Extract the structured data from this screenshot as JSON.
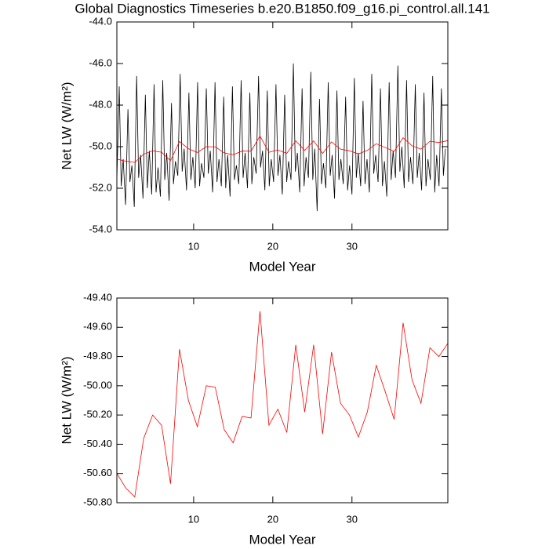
{
  "chart_data": [
    {
      "type": "line",
      "title": "Global Diagnostics Timeseries b.e20.B1850.f09_g16.pi_control.all.141",
      "x_label": "Model Year",
      "y_label": "Net LW (W/m²)",
      "xlim": [
        0.3,
        42.11
      ],
      "xticks": [
        10,
        20,
        30
      ],
      "ylim": [
        -54,
        -44
      ],
      "yticks": [
        {
          "value": -54,
          "label": "-54.0"
        },
        {
          "value": -52,
          "label": "-52.0"
        },
        {
          "value": -50,
          "label": "-50.0"
        },
        {
          "value": -48,
          "label": "-48.0"
        },
        {
          "value": -46,
          "label": "-46.0"
        },
        {
          "value": -44,
          "label": "-44.0"
        }
      ],
      "series": [
        {
          "color": "#000000",
          "x": [
            0.3,
            0.6,
            0.85,
            1.1,
            1.4,
            1.7,
            1.95,
            2.2,
            2.5,
            2.8,
            3.05,
            3.3,
            3.6,
            3.9,
            4.15,
            4.4,
            4.7,
            5.0,
            5.25,
            5.5,
            5.8,
            6.1,
            6.35,
            6.6,
            6.9,
            7.2,
            7.45,
            7.7,
            8.0,
            8.3,
            8.55,
            8.8,
            9.1,
            9.4,
            9.65,
            9.9,
            10.2,
            10.5,
            10.75,
            11.0,
            11.3,
            11.6,
            11.85,
            12.1,
            12.4,
            12.7,
            12.95,
            13.2,
            13.5,
            13.8,
            14.05,
            14.3,
            14.6,
            14.9,
            15.15,
            15.4,
            15.7,
            16.0,
            16.25,
            16.5,
            16.8,
            17.1,
            17.35,
            17.6,
            17.9,
            18.2,
            18.45,
            18.7,
            19.0,
            19.3,
            19.55,
            19.8,
            20.1,
            20.4,
            20.65,
            20.9,
            21.2,
            21.5,
            21.75,
            22.0,
            22.3,
            22.6,
            22.85,
            23.1,
            23.4,
            23.7,
            23.95,
            24.2,
            24.5,
            24.8,
            25.05,
            25.3,
            25.6,
            25.9,
            26.15,
            26.4,
            26.7,
            27.0,
            27.25,
            27.5,
            27.8,
            28.1,
            28.35,
            28.6,
            28.9,
            29.2,
            29.45,
            29.7,
            30.0,
            30.3,
            30.55,
            30.8,
            31.1,
            31.4,
            31.65,
            31.9,
            32.2,
            32.5,
            32.75,
            33.0,
            33.3,
            33.6,
            33.85,
            34.1,
            34.4,
            34.7,
            34.95,
            35.2,
            35.5,
            35.8,
            36.05,
            36.3,
            36.6,
            36.9,
            37.15,
            37.4,
            37.7,
            38.0,
            38.25,
            38.5,
            38.8,
            39.1,
            39.35,
            39.6,
            39.9,
            40.2,
            40.45,
            40.7,
            41.0,
            41.3,
            41.55,
            41.8
          ],
          "values": [
            -51.6,
            -47.1,
            -51.9,
            -50.6,
            -52.8,
            -48.2,
            -51.7,
            -50.9,
            -52.9,
            -46.6,
            -51.5,
            -50.4,
            -52.5,
            -47.5,
            -52.0,
            -50.2,
            -52.3,
            -47.0,
            -52.2,
            -51.0,
            -52.4,
            -46.8,
            -51.6,
            -50.3,
            -52.6,
            -47.9,
            -51.8,
            -50.7,
            -51.4,
            -46.5,
            -51.2,
            -50.1,
            -52.1,
            -47.4,
            -51.6,
            -50.5,
            -52.0,
            -46.9,
            -51.9,
            -50.8,
            -51.5,
            -47.2,
            -51.3,
            -50.2,
            -52.2,
            -46.9,
            -51.7,
            -50.6,
            -51.9,
            -47.6,
            -52.0,
            -50.4,
            -52.4,
            -47.1,
            -51.6,
            -50.9,
            -51.8,
            -46.8,
            -51.5,
            -50.3,
            -52.0,
            -47.4,
            -51.8,
            -50.5,
            -51.3,
            -46.6,
            -51.0,
            -50.2,
            -52.1,
            -47.3,
            -51.9,
            -50.6,
            -51.7,
            -47.0,
            -51.4,
            -50.4,
            -52.3,
            -47.5,
            -51.7,
            -50.7,
            -51.6,
            -46.0,
            -51.2,
            -50.3,
            -52.2,
            -47.2,
            -51.9,
            -50.5,
            -51.5,
            -46.4,
            -51.6,
            -50.1,
            -53.1,
            -47.7,
            -51.8,
            -50.8,
            -52.0,
            -46.9,
            -51.4,
            -50.4,
            -52.5,
            -47.3,
            -51.6,
            -50.6,
            -51.8,
            -47.6,
            -52.1,
            -50.9,
            -52.3,
            -46.7,
            -51.5,
            -50.3,
            -51.9,
            -47.8,
            -51.8,
            -50.6,
            -52.2,
            -46.5,
            -51.3,
            -50.4,
            -51.7,
            -47.2,
            -51.9,
            -50.7,
            -52.4,
            -46.9,
            -51.6,
            -50.2,
            -51.5,
            -46.1,
            -51.2,
            -50.0,
            -52.0,
            -46.8,
            -51.7,
            -50.5,
            -51.8,
            -47.0,
            -51.5,
            -50.3,
            -52.1,
            -47.4,
            -51.9,
            -50.6,
            -51.6,
            -46.6,
            -52.2,
            -50.4,
            -51.9,
            -47.2,
            -51.4,
            -50.1
          ]
        },
        {
          "color": "#ff0000",
          "x": [
            0.3,
            1.43,
            2.56,
            3.69,
            4.82,
            5.95,
            7.08,
            8.21,
            9.34,
            10.47,
            11.6,
            12.73,
            13.86,
            14.99,
            16.12,
            17.25,
            18.38,
            19.51,
            20.64,
            21.77,
            22.9,
            24.03,
            25.16,
            26.29,
            27.42,
            28.55,
            29.68,
            30.81,
            31.94,
            33.07,
            34.2,
            35.33,
            36.46,
            37.59,
            38.72,
            39.85,
            40.98,
            42.11
          ],
          "values": [
            -50.6,
            -50.7,
            -50.76,
            -50.36,
            -50.2,
            -50.27,
            -50.67,
            -49.75,
            -50.1,
            -50.28,
            -50.0,
            -50.01,
            -50.3,
            -50.39,
            -50.21,
            -50.22,
            -49.49,
            -50.27,
            -50.16,
            -50.32,
            -49.72,
            -50.18,
            -49.72,
            -50.33,
            -49.77,
            -50.12,
            -50.2,
            -50.35,
            -50.18,
            -49.86,
            -50.04,
            -50.23,
            -49.57,
            -49.96,
            -50.12,
            -49.74,
            -49.8,
            -49.71
          ]
        }
      ]
    },
    {
      "type": "line",
      "x_label": "Model Year",
      "y_label": "Net LW (W/m²)",
      "xlim": [
        0.3,
        42.11
      ],
      "xticks": [
        10,
        20,
        30
      ],
      "ylim": [
        -50.8,
        -49.4
      ],
      "yticks": [
        {
          "value": -50.8,
          "label": "-50.80"
        },
        {
          "value": -50.6,
          "label": "-50.60"
        },
        {
          "value": -50.4,
          "label": "-50.40"
        },
        {
          "value": -50.2,
          "label": "-50.20"
        },
        {
          "value": -50.0,
          "label": "-50.00"
        },
        {
          "value": -49.8,
          "label": "-49.80"
        },
        {
          "value": -49.6,
          "label": "-49.60"
        },
        {
          "value": -49.4,
          "label": "-49.40"
        }
      ],
      "series": [
        {
          "color": "#ff0000",
          "x": [
            0.3,
            1.43,
            2.56,
            3.69,
            4.82,
            5.95,
            7.08,
            8.21,
            9.34,
            10.47,
            11.6,
            12.73,
            13.86,
            14.99,
            16.12,
            17.25,
            18.38,
            19.51,
            20.64,
            21.77,
            22.9,
            24.03,
            25.16,
            26.29,
            27.42,
            28.55,
            29.68,
            30.81,
            31.94,
            33.07,
            34.2,
            35.33,
            36.46,
            37.59,
            38.72,
            39.85,
            40.98,
            42.11
          ],
          "values": [
            -50.6,
            -50.7,
            -50.76,
            -50.36,
            -50.2,
            -50.27,
            -50.67,
            -49.75,
            -50.1,
            -50.28,
            -50.0,
            -50.01,
            -50.3,
            -50.39,
            -50.21,
            -50.22,
            -49.49,
            -50.27,
            -50.16,
            -50.32,
            -49.72,
            -50.18,
            -49.72,
            -50.33,
            -49.77,
            -50.12,
            -50.2,
            -50.35,
            -50.18,
            -49.86,
            -50.04,
            -50.23,
            -49.57,
            -49.96,
            -50.12,
            -49.74,
            -49.8,
            -49.71
          ]
        }
      ]
    }
  ]
}
